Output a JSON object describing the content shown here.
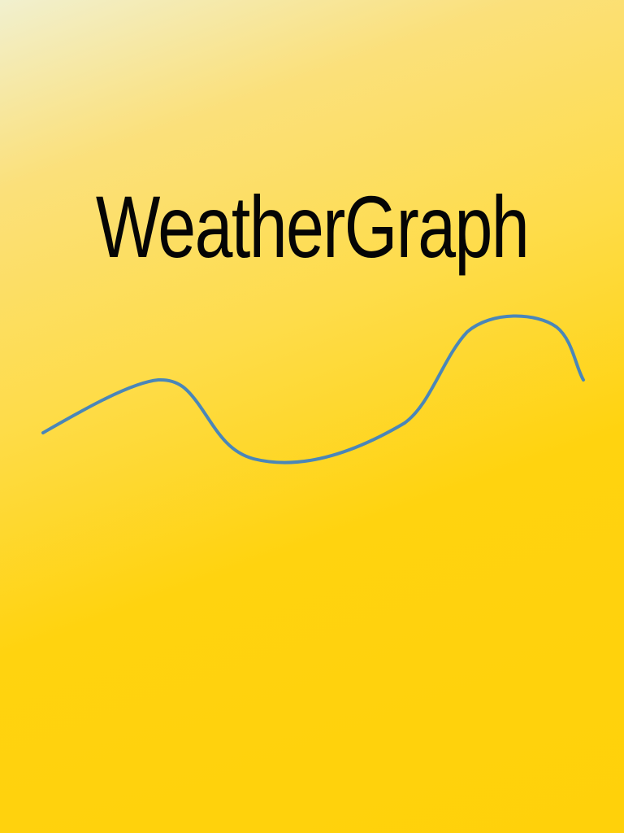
{
  "splash": {
    "title": "WeatherGraph",
    "background_colors": [
      "#f1f0cf",
      "#fedc4a",
      "#ffd10a"
    ],
    "graph_line_color": "#4a86b8"
  }
}
